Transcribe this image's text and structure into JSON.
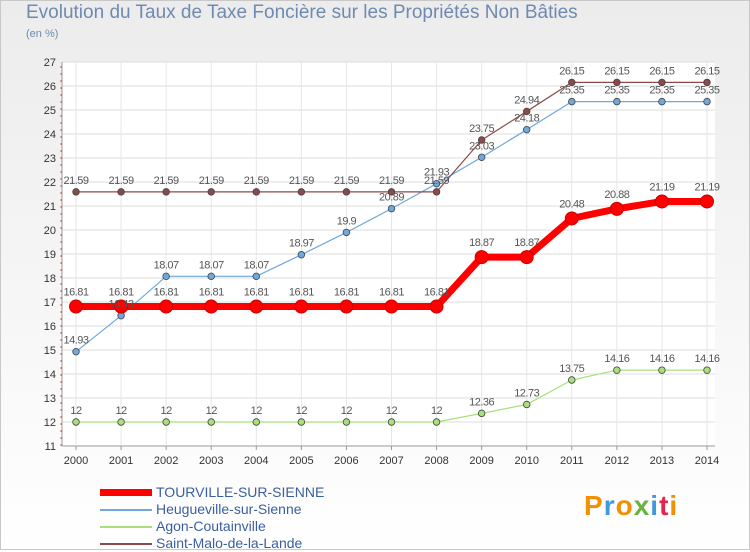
{
  "header": {
    "title": "Evolution du Taux de Taxe Foncière sur les Propriétés Non Bâties",
    "unit": "(en %)"
  },
  "chart_data": {
    "type": "line",
    "title": "Evolution du Taux de Taxe Foncière sur les Propriétés Non Bâties",
    "ylabel": "(en %)",
    "xlabel": "",
    "ylim": [
      11,
      27
    ],
    "yticks": [
      11,
      12,
      13,
      14,
      15,
      16,
      17,
      18,
      19,
      20,
      21,
      22,
      23,
      24,
      25,
      26,
      27
    ],
    "categories": [
      "2000",
      "2001",
      "2002",
      "2003",
      "2004",
      "2005",
      "2006",
      "2007",
      "2008",
      "2009",
      "2010",
      "2011",
      "2012",
      "2013",
      "2014"
    ],
    "series": [
      {
        "name": "TOURVILLE-SUR-SIENNE",
        "color": "#ff0000",
        "values": [
          16.81,
          16.81,
          16.81,
          16.81,
          16.81,
          16.81,
          16.81,
          16.81,
          16.81,
          18.87,
          18.87,
          20.48,
          20.88,
          21.19,
          21.19
        ]
      },
      {
        "name": "Heugueville-sur-Sienne",
        "color": "#6fa8dc",
        "values": [
          14.93,
          16.43,
          18.07,
          18.07,
          18.07,
          18.97,
          19.9,
          20.89,
          21.93,
          23.03,
          24.18,
          25.35,
          25.35,
          25.35,
          25.35
        ]
      },
      {
        "name": "Agon-Coutainville",
        "color": "#a8e07a",
        "values": [
          12,
          12,
          12,
          12,
          12,
          12,
          12,
          12,
          12,
          12.36,
          12.73,
          13.75,
          14.16,
          14.16,
          14.16
        ]
      },
      {
        "name": "Saint-Malo-de-la-Lande",
        "color": "#8b4a4a",
        "values": [
          21.59,
          21.59,
          21.59,
          21.59,
          21.59,
          21.59,
          21.59,
          21.59,
          21.59,
          23.75,
          24.94,
          26.15,
          26.15,
          26.15,
          26.15
        ]
      }
    ],
    "legend_position": "bottom-left"
  },
  "logo": {
    "text": "Proxiti",
    "colors": [
      "#f29100",
      "#3f9ad6",
      "#f29100",
      "#69b23f",
      "#3f9ad6",
      "#e3264e",
      "#f29100"
    ]
  }
}
